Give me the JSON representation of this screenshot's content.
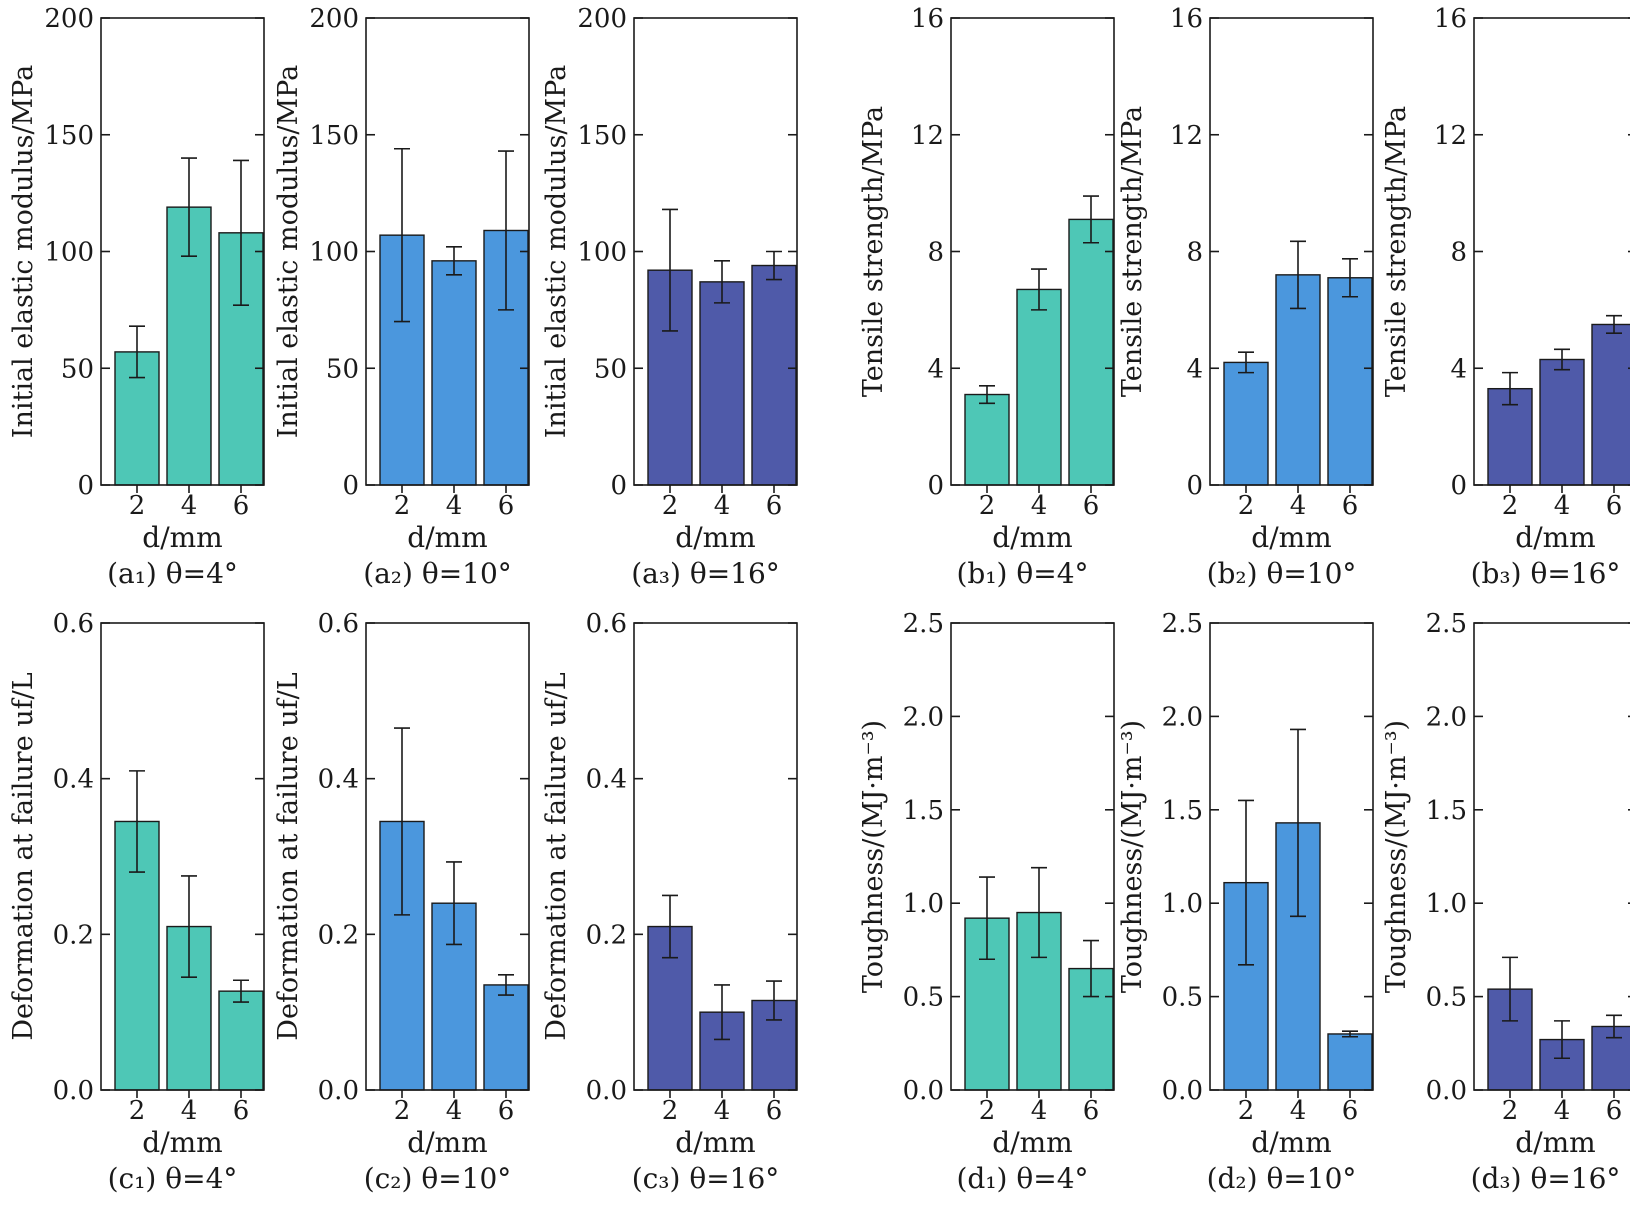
{
  "colors": {
    "theta4": "#4ec7b6",
    "theta10": "#4b97dd",
    "theta16": "#4f5aa9"
  },
  "chart_data": [
    {
      "type": "bar",
      "caption": "(a₁) θ=4°",
      "ylabel": "Initial elastic modulus/MPa",
      "xlabel": "d/mm",
      "color": "theta4",
      "categories": [
        "2",
        "4",
        "6"
      ],
      "values": [
        57,
        119,
        108
      ],
      "errors": [
        11,
        21,
        31
      ],
      "ylim": [
        0,
        200
      ],
      "yticks": [
        "0",
        "50",
        "100",
        "150",
        "200"
      ]
    },
    {
      "type": "bar",
      "caption": "(a₂) θ=10°",
      "ylabel": "Initial elastic modulus/MPa",
      "xlabel": "d/mm",
      "color": "theta10",
      "categories": [
        "2",
        "4",
        "6"
      ],
      "values": [
        107,
        96,
        109
      ],
      "errors": [
        37,
        6,
        34
      ],
      "ylim": [
        0,
        200
      ],
      "yticks": [
        "0",
        "50",
        "100",
        "150",
        "200"
      ]
    },
    {
      "type": "bar",
      "caption": "(a₃) θ=16°",
      "ylabel": "Initial elastic modulus/MPa",
      "xlabel": "d/mm",
      "color": "theta16",
      "categories": [
        "2",
        "4",
        "6"
      ],
      "values": [
        92,
        87,
        94
      ],
      "errors": [
        26,
        9,
        6
      ],
      "ylim": [
        0,
        200
      ],
      "yticks": [
        "0",
        "50",
        "100",
        "150",
        "200"
      ]
    },
    {
      "type": "bar",
      "caption": "(b₁) θ=4°",
      "ylabel": "Tensile strength/MPa",
      "xlabel": "d/mm",
      "color": "theta4",
      "categories": [
        "2",
        "4",
        "6"
      ],
      "values": [
        3.1,
        6.7,
        9.1
      ],
      "errors": [
        0.3,
        0.7,
        0.8
      ],
      "ylim": [
        0,
        16
      ],
      "yticks": [
        "0",
        "4",
        "8",
        "12",
        "16"
      ]
    },
    {
      "type": "bar",
      "caption": "(b₂) θ=10°",
      "ylabel": "Tensile strength/MPa",
      "xlabel": "d/mm",
      "color": "theta10",
      "categories": [
        "2",
        "4",
        "6"
      ],
      "values": [
        4.2,
        7.2,
        7.1
      ],
      "errors": [
        0.35,
        1.15,
        0.65
      ],
      "ylim": [
        0,
        16
      ],
      "yticks": [
        "0",
        "4",
        "8",
        "12",
        "16"
      ]
    },
    {
      "type": "bar",
      "caption": "(b₃) θ=16°",
      "ylabel": "Tensile strength/MPa",
      "xlabel": "d/mm",
      "color": "theta16",
      "categories": [
        "2",
        "4",
        "6"
      ],
      "values": [
        3.3,
        4.3,
        5.5
      ],
      "errors": [
        0.55,
        0.35,
        0.3
      ],
      "ylim": [
        0,
        16
      ],
      "yticks": [
        "0",
        "4",
        "8",
        "12",
        "16"
      ]
    },
    {
      "type": "bar",
      "caption": "(c₁) θ=4°",
      "ylabel": "Deformation at failure uf/L",
      "xlabel": "d/mm",
      "color": "theta4",
      "categories": [
        "2",
        "4",
        "6"
      ],
      "values": [
        0.345,
        0.21,
        0.127
      ],
      "errors": [
        0.065,
        0.065,
        0.014
      ],
      "ylim": [
        0,
        0.6
      ],
      "yticks": [
        "0.0",
        "0.2",
        "0.4",
        "0.6"
      ]
    },
    {
      "type": "bar",
      "caption": "(c₂) θ=10°",
      "ylabel": "Deformation at failure uf/L",
      "xlabel": "d/mm",
      "color": "theta10",
      "categories": [
        "2",
        "4",
        "6"
      ],
      "values": [
        0.345,
        0.24,
        0.135
      ],
      "errors": [
        0.12,
        0.053,
        0.013
      ],
      "ylim": [
        0,
        0.6
      ],
      "yticks": [
        "0.0",
        "0.2",
        "0.4",
        "0.6"
      ]
    },
    {
      "type": "bar",
      "caption": "(c₃) θ=16°",
      "ylabel": "Deformation at failure uf/L",
      "xlabel": "d/mm",
      "color": "theta16",
      "categories": [
        "2",
        "4",
        "6"
      ],
      "values": [
        0.21,
        0.1,
        0.115
      ],
      "errors": [
        0.04,
        0.035,
        0.025
      ],
      "ylim": [
        0,
        0.6
      ],
      "yticks": [
        "0.0",
        "0.2",
        "0.4",
        "0.6"
      ]
    },
    {
      "type": "bar",
      "caption": "(d₁) θ=4°",
      "ylabel": "Toughness/(MJ·m⁻³)",
      "xlabel": "d/mm",
      "color": "theta4",
      "categories": [
        "2",
        "4",
        "6"
      ],
      "values": [
        0.92,
        0.95,
        0.65
      ],
      "errors": [
        0.22,
        0.24,
        0.15
      ],
      "ylim": [
        0,
        2.5
      ],
      "yticks": [
        "0.0",
        "0.5",
        "1.0",
        "1.5",
        "2.0",
        "2.5"
      ]
    },
    {
      "type": "bar",
      "caption": "(d₂) θ=10°",
      "ylabel": "Toughness/(MJ·m⁻³)",
      "xlabel": "d/mm",
      "color": "theta10",
      "categories": [
        "2",
        "4",
        "6"
      ],
      "values": [
        1.11,
        1.43,
        0.3
      ],
      "errors": [
        0.44,
        0.5,
        0.015
      ],
      "ylim": [
        0,
        2.5
      ],
      "yticks": [
        "0.0",
        "0.5",
        "1.0",
        "1.5",
        "2.0",
        "2.5"
      ]
    },
    {
      "type": "bar",
      "caption": "(d₃) θ=16°",
      "ylabel": "Toughness/(MJ·m⁻³)",
      "xlabel": "d/mm",
      "color": "theta16",
      "categories": [
        "2",
        "4",
        "6"
      ],
      "values": [
        0.54,
        0.27,
        0.34
      ],
      "errors": [
        0.17,
        0.1,
        0.06
      ],
      "ylim": [
        0,
        2.5
      ],
      "yticks": [
        "0.0",
        "0.5",
        "1.0",
        "1.5",
        "2.0",
        "2.5"
      ]
    }
  ]
}
